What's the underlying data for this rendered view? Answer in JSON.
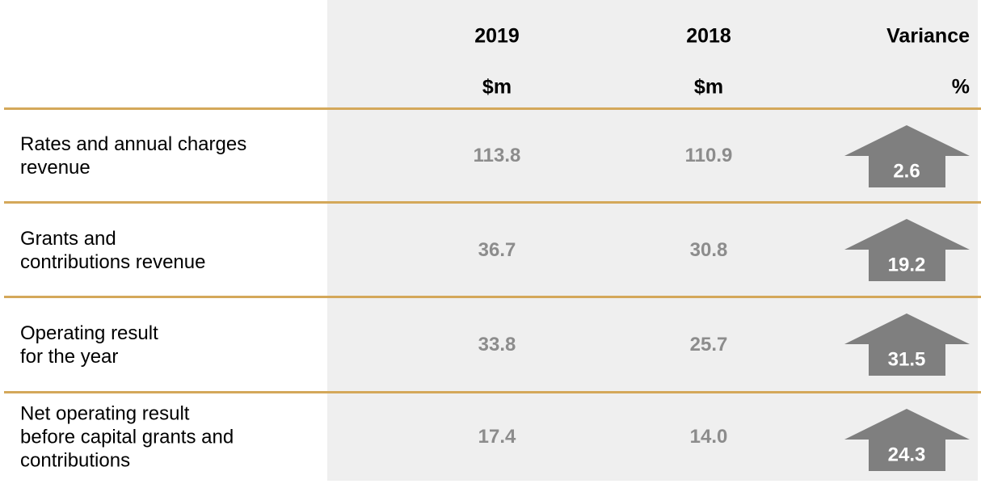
{
  "table": {
    "columns": [
      {
        "year": "2019",
        "unit": "$m"
      },
      {
        "year": "2018",
        "unit": "$m"
      },
      {
        "year": "Variance",
        "unit": "%"
      }
    ],
    "rows": [
      {
        "label": [
          "Rates and annual charges",
          "revenue"
        ],
        "values": [
          "113.8",
          "110.9"
        ],
        "variance": "2.6"
      },
      {
        "label": [
          "Grants and",
          "contributions revenue"
        ],
        "values": [
          "36.7",
          "30.8"
        ],
        "variance": "19.2"
      },
      {
        "label": [
          "Operating result",
          "for the year"
        ],
        "values": [
          "33.8",
          "25.7"
        ],
        "variance": "31.5"
      },
      {
        "label": [
          "Net operating result",
          "before capital grants and",
          "contributions"
        ],
        "values": [
          "17.4",
          "14.0"
        ],
        "variance": "24.3"
      }
    ]
  }
}
